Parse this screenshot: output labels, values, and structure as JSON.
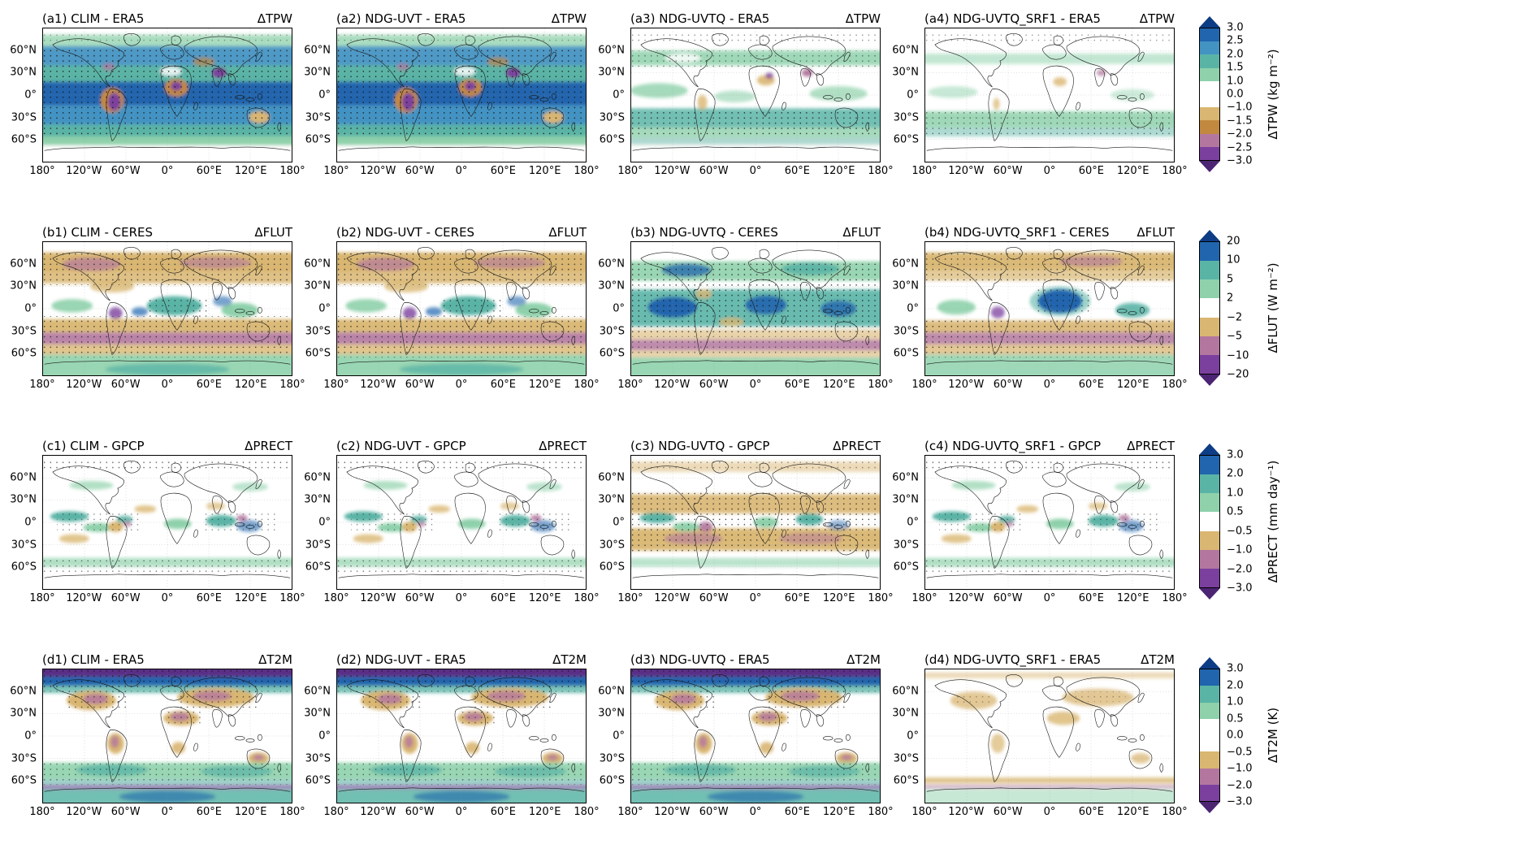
{
  "figure": {
    "x_ticks": [
      "180°",
      "120°W",
      "60°W",
      "0°",
      "60°E",
      "120°E",
      "180°"
    ],
    "y_ticks": [
      "60°N",
      "30°N",
      "0°",
      "30°S",
      "60°S"
    ],
    "rows": [
      {
        "id": "a",
        "variable": "ΔTPW",
        "panels": [
          {
            "title": "(a1) CLIM - ERA5"
          },
          {
            "title": "(a2) NDG-UVT - ERA5"
          },
          {
            "title": "(a3) NDG-UVTQ - ERA5"
          },
          {
            "title": "(a4) NDG-UVTQ_SRF1 - ERA5"
          }
        ],
        "colorbar": {
          "label": "ΔTPW (kg m⁻²)",
          "ticks": [
            "3.0",
            "2.5",
            "2.0",
            "1.5",
            "1.0",
            "0.0",
            "−1.0",
            "−1.5",
            "−2.0",
            "−2.5",
            "−3.0"
          ],
          "colors": [
            "#2065ae",
            "#4393c3",
            "#5ab4a6",
            "#8ed1ab",
            "#ffffff",
            "#ffffff",
            "#d9b671",
            "#c2883f",
            "#b3779f",
            "#7b3f9e"
          ],
          "arrow_top": "#0d3d85",
          "arrow_bottom": "#4c2473"
        }
      },
      {
        "id": "b",
        "variable": "ΔFLUT",
        "panels": [
          {
            "title": "(b1) CLIM - CERES"
          },
          {
            "title": "(b2) NDG-UVT - CERES"
          },
          {
            "title": "(b3) NDG-UVTQ - CERES"
          },
          {
            "title": "(b4) NDG-UVTQ_SRF1 - CERES"
          }
        ],
        "colorbar": {
          "label": "ΔFLUT (W m⁻²)",
          "ticks": [
            "20",
            "10",
            "5",
            "2",
            "−2",
            "−5",
            "−10",
            "−20"
          ],
          "colors": [
            "#2065ae",
            "#5ab4a6",
            "#8ed1ab",
            "#ffffff",
            "#d9b671",
            "#b3779f",
            "#7b3f9e"
          ],
          "arrow_top": "#0d3d85",
          "arrow_bottom": "#4c2473"
        }
      },
      {
        "id": "c",
        "variable": "ΔPRECT",
        "panels": [
          {
            "title": "(c1) CLIM - GPCP"
          },
          {
            "title": "(c2) NDG-UVT - GPCP"
          },
          {
            "title": "(c3) NDG-UVTQ - GPCP"
          },
          {
            "title": "(c4) NDG-UVTQ_SRF1 - GPCP"
          }
        ],
        "colorbar": {
          "label": "ΔPRECT (mm day⁻¹)",
          "ticks": [
            "3.0",
            "2.0",
            "1.0",
            "0.5",
            "−0.5",
            "−1.0",
            "−2.0",
            "−3.0"
          ],
          "colors": [
            "#2065ae",
            "#5ab4a6",
            "#8ed1ab",
            "#ffffff",
            "#d9b671",
            "#b3779f",
            "#7b3f9e"
          ],
          "arrow_top": "#0d3d85",
          "arrow_bottom": "#4c2473"
        }
      },
      {
        "id": "d",
        "variable": "ΔT2M",
        "panels": [
          {
            "title": "(d1) CLIM - ERA5"
          },
          {
            "title": "(d2) NDG-UVT - ERA5"
          },
          {
            "title": "(d3) NDG-UVTQ - ERA5"
          },
          {
            "title": "(d4) NDG-UVTQ_SRF1 - ERA5"
          }
        ],
        "colorbar": {
          "label": "ΔT2M (K)",
          "ticks": [
            "3.0",
            "2.0",
            "1.0",
            "0.5",
            "0.0",
            "−0.5",
            "−1.0",
            "−2.0",
            "−3.0"
          ],
          "colors": [
            "#2065ae",
            "#5ab4a6",
            "#8ed1ab",
            "#ffffff",
            "#ffffff",
            "#d9b671",
            "#b3779f",
            "#7b3f9e"
          ],
          "arrow_top": "#0d3d85",
          "arrow_bottom": "#4c2473"
        }
      }
    ]
  },
  "chart_data": {
    "type": "heatmap",
    "subtype": "global_map_grid",
    "grid": {
      "rows": 4,
      "cols": 4
    },
    "projection": "equirectangular, 90N-90S by 180W-180E",
    "stippling": "black dots mark stippled (significant) regions",
    "experiments": [
      "CLIM",
      "NDG-UVT",
      "NDG-UVTQ",
      "NDG-UVTQ_SRF1"
    ],
    "references": {
      "ΔTPW": "ERA5",
      "ΔFLUT": "CERES",
      "ΔPRECT": "GPCP",
      "ΔT2M": "ERA5"
    },
    "x_axis": {
      "ticks": [
        "180°",
        "120°W",
        "60°W",
        "0°",
        "60°E",
        "120°E",
        "180°"
      ],
      "range_deg": [
        -180,
        180
      ]
    },
    "y_axis": {
      "ticks": [
        "60°N",
        "30°N",
        "0°",
        "30°S",
        "60°S"
      ],
      "range_deg": [
        90,
        -90
      ]
    },
    "rows": [
      {
        "panel_ids": [
          "a1",
          "a2",
          "a3",
          "a4"
        ],
        "variable": "ΔTPW",
        "units": "kg m⁻²",
        "levels": [
          -3,
          -2.5,
          -2,
          -1.5,
          -1,
          0,
          1,
          1.5,
          2,
          2.5,
          3
        ]
      },
      {
        "panel_ids": [
          "b1",
          "b2",
          "b3",
          "b4"
        ],
        "variable": "ΔFLUT",
        "units": "W m⁻²",
        "levels": [
          -20,
          -10,
          -5,
          -2,
          2,
          5,
          10,
          20
        ]
      },
      {
        "panel_ids": [
          "c1",
          "c2",
          "c3",
          "c4"
        ],
        "variable": "ΔPRECT",
        "units": "mm day⁻¹",
        "levels": [
          -3,
          -2,
          -1,
          -0.5,
          0.5,
          1,
          2,
          3
        ]
      },
      {
        "panel_ids": [
          "d1",
          "d2",
          "d3",
          "d4"
        ],
        "variable": "ΔT2M",
        "units": "K",
        "levels": [
          -3,
          -2,
          -1,
          -0.5,
          0,
          0.5,
          1,
          2,
          3
        ]
      }
    ],
    "colormap_negative_to_positive": [
      "#4c2473",
      "#7b3f9e",
      "#b3779f",
      "#c2883f",
      "#d9b671",
      "#ffffff",
      "#8ed1ab",
      "#5ab4a6",
      "#4393c3",
      "#2065ae",
      "#0d3d85"
    ],
    "pattern_summary": {
      "a1": "Large positive TPW bias (blue/teal) over most oceans 60S-60N; negative (tan/purple) over Amazon, central Africa, India; heavy stippling.",
      "a2": "Very similar to a1.",
      "a3": "Much weaker; light green positive bands over subtropical and SH midlatitude oceans; small land anomalies.",
      "a4": "Weakest of row; faint green SH band, minor land patches.",
      "b1": "Positive FLUT bias (tan/mauve) in mid/high latitudes and subtropics; negative (green/blue) in deep tropics; green over Antarctica.",
      "b2": "Similar to b1.",
      "b3": "Negative (blue/green) bias dominates tropics and NH midlatitudes; mauve band over Southern Ocean.",
      "b4": "Mixed: blue/teal over tropical Africa and Atlantic, tan/mauve bands elsewhere.",
      "c1": "Wet (green/blue) bias along ITCZ, SPCZ and storm tracks; dry (tan) over Amazon and subtropics; stippled polar bands.",
      "c2": "Similar to c1, slightly weaker.",
      "c3": "Widespread dry (tan/mauve) bias across subtropics and SH midlatitudes; wet ITCZ remains.",
      "c4": "Similar to c1.",
      "d1": "Cold (purple/blue) Arctic; warm (tan/mauve) continents; cold (green/teal) Southern Ocean and Antarctic fringe.",
      "d2": "Similar to d1.",
      "d3": "Similar to d1.",
      "d4": "Much weaker; light warm bias over continents, thin bands near Antarctica."
    }
  }
}
